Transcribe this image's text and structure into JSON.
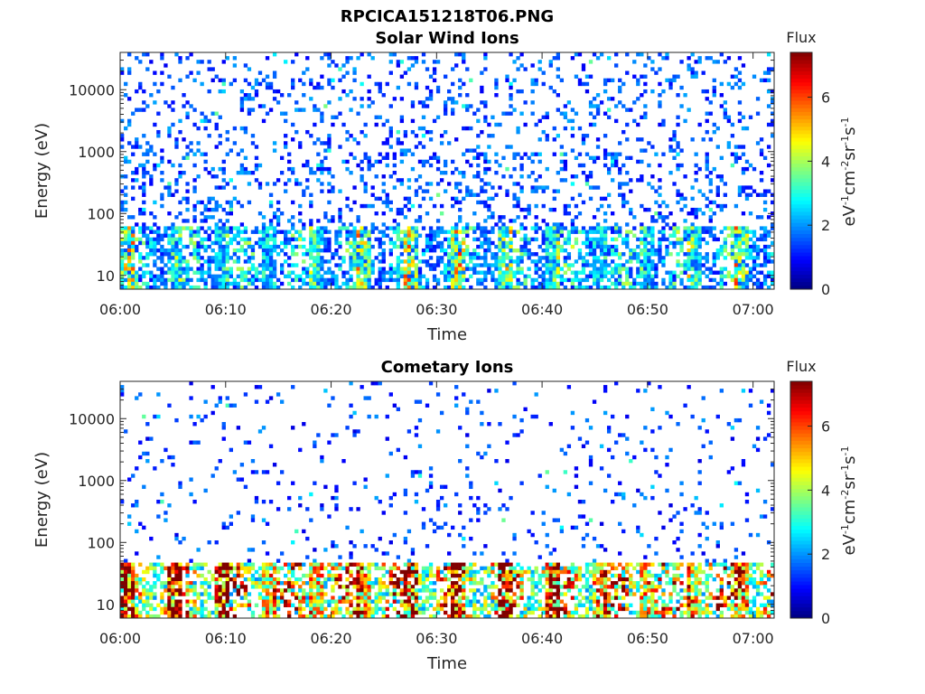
{
  "title": "RPCICA151218T06.PNG",
  "chart_data": [
    {
      "type": "heatmap",
      "title": "Solar Wind Ions",
      "xlabel": "Time",
      "ylabel": "Energy (eV)",
      "x_range": [
        "06:00",
        "07:02"
      ],
      "y_range": [
        6,
        40000
      ],
      "y_scale": "log",
      "x_ticks": [
        "06:00",
        "06:10",
        "06:20",
        "06:30",
        "06:40",
        "06:50",
        "07:00"
      ],
      "y_ticks": [
        "10",
        "100",
        "1000",
        "10000"
      ],
      "colorbar": {
        "label": "Flux",
        "unit": "eV-1 cm-2 sr-1 s-1",
        "range": [
          0,
          7.4
        ],
        "ticks": [
          "0",
          "2",
          "4",
          "6"
        ]
      },
      "colormap": "jet",
      "intensity_profile": {
        "low_energy_band_eV": [
          6,
          60
        ],
        "typical_low_band_flux": 3,
        "typical_high_energy_flux": 0.8,
        "high_energy_occupancy": 0.18
      },
      "seed": 7
    },
    {
      "type": "heatmap",
      "title": "Cometary Ions",
      "xlabel": "Time",
      "ylabel": "Energy (eV)",
      "x_range": [
        "06:00",
        "07:02"
      ],
      "y_range": [
        6,
        40000
      ],
      "y_scale": "log",
      "x_ticks": [
        "06:00",
        "06:10",
        "06:20",
        "06:30",
        "06:40",
        "06:50",
        "07:00"
      ],
      "y_ticks": [
        "10",
        "100",
        "1000",
        "10000"
      ],
      "colorbar": {
        "label": "Flux",
        "unit": "eV-1 cm-2 sr-1 s-1",
        "range": [
          0,
          7.4
        ],
        "ticks": [
          "0",
          "2",
          "4",
          "6"
        ]
      },
      "colormap": "jet",
      "intensity_profile": {
        "low_energy_band_eV": [
          6,
          50
        ],
        "typical_low_band_flux": 6,
        "typical_high_energy_flux": 0.7,
        "high_energy_occupancy": 0.06
      },
      "seed": 19
    }
  ]
}
